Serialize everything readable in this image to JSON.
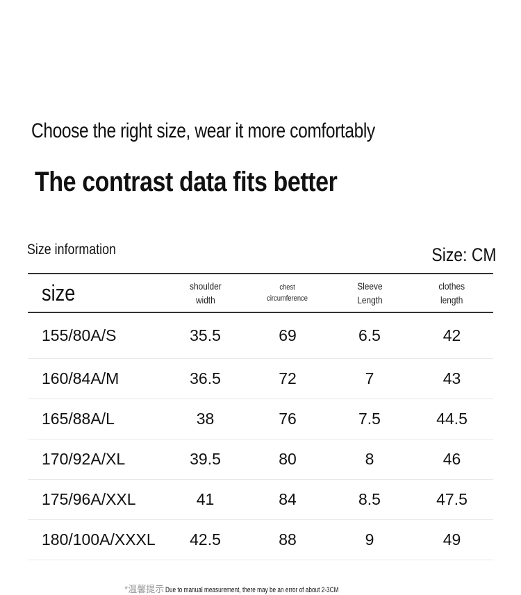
{
  "header": {
    "subtitle": "Choose the right size, wear it more comfortably",
    "headline": "The contrast data fits better"
  },
  "size_info_label": "Size information",
  "size_unit_label": "Size: CM",
  "table": {
    "headers": [
      "size",
      "shoulder\nwidth",
      "chest\ncircumference",
      "Sleeve\nLength",
      "clothes\nlength"
    ],
    "rows": [
      [
        "155/80A/S",
        "35.5",
        "69",
        "6.5",
        "42"
      ],
      [
        "160/84A/M",
        "36.5",
        "72",
        "7",
        "43"
      ],
      [
        "165/88A/L",
        "38",
        "76",
        "7.5",
        "44.5"
      ],
      [
        "170/92A/XL",
        "39.5",
        "80",
        "8",
        "46"
      ],
      [
        "175/96A/XXL",
        "41",
        "84",
        "8.5",
        "47.5"
      ],
      [
        "180/100A/XXXL",
        "42.5",
        "88",
        "9",
        "49"
      ]
    ]
  },
  "footnote": {
    "prefix": "*温馨提示",
    "text": "Due to manual measurement, there may be an error of about 2-3CM"
  }
}
